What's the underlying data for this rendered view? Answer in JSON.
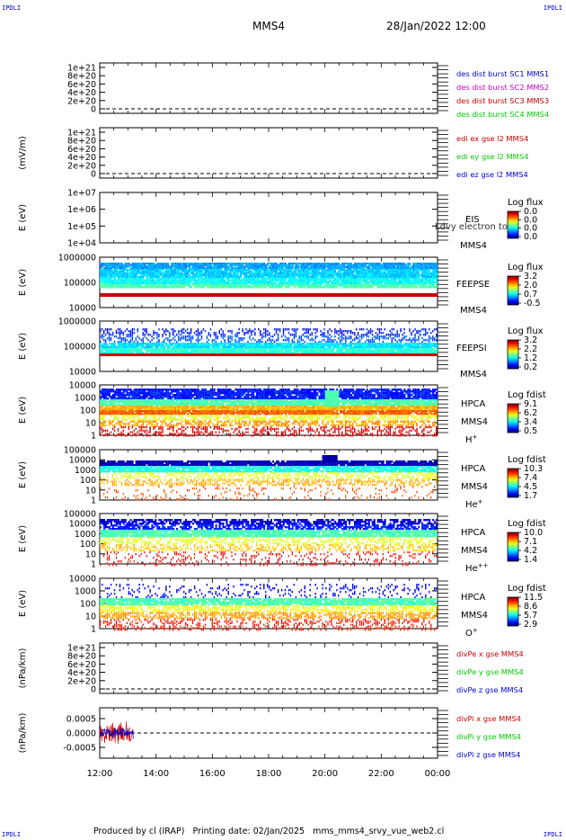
{
  "corners": {
    "tl": "IPDLI",
    "tr": "IPDLI",
    "bl": "IPDLI",
    "br": "IPDLI"
  },
  "header": {
    "spacecraft": "MMS4",
    "datetime": "28/Jan/2022 12:00"
  },
  "footer": {
    "producer": "Produced by cl (IRAP)",
    "printing": "Printing date: 02/Jan/2025",
    "file": "mms_mms4_srvy_vue_web2.cl"
  },
  "chart_data": {
    "type": "line",
    "x_ticks": [
      "12:00",
      "14:00",
      "16:00",
      "18:00",
      "20:00",
      "22:00",
      "00:00"
    ],
    "x_range_hours": [
      12,
      24
    ],
    "panels": [
      {
        "id": "des-dist",
        "kind": "line",
        "ylabel": "",
        "yticks": [
          "1e+21",
          "8e+20",
          "6e+20",
          "4e+20",
          "2e+20",
          "0"
        ],
        "legend": [
          {
            "label": "des dist burst SC1 MMS1",
            "color": "#0000cc"
          },
          {
            "label": "des dist burst SC2 MMS2",
            "color": "#cc00cc"
          },
          {
            "label": "des dist burst SC3 MMS3",
            "color": "#cc0000"
          },
          {
            "label": "des dist burst SC4 MMS4",
            "color": "#00cc00"
          }
        ],
        "series": [],
        "zero_line": true
      },
      {
        "id": "edi",
        "kind": "line",
        "ylabel": "(mV/m)",
        "yticks": [
          "1e+21",
          "8e+20",
          "6e+20",
          "4e+20",
          "2e+20",
          "0"
        ],
        "legend": [
          {
            "label": "edi ex gse l2 MMS4",
            "color": "#cc0000"
          },
          {
            "label": "edi ey gse l2 MMS4",
            "color": "#00cc00"
          },
          {
            "label": "edi ez gse l2 MMS4",
            "color": "#0000cc"
          }
        ],
        "series": [],
        "zero_line": true
      },
      {
        "id": "eis",
        "kind": "spectrogram",
        "ylabel": "E (eV)",
        "yticks": [
          "1e+07",
          "1e+06",
          "1e+05",
          "1e+04"
        ],
        "instrument": "EIS",
        "sublabels": [
          "MMS4"
        ],
        "overlay": "Ldvy electron to",
        "colorbar": {
          "title": "Log flux",
          "ticks": [
            "0.0",
            "0.0",
            "0.0",
            "0.0"
          ]
        },
        "data": "empty"
      },
      {
        "id": "feepse",
        "kind": "spectrogram",
        "ylabel": "E (eV)",
        "yticks": [
          "1000000",
          "100000",
          "10000"
        ],
        "instrument": "FEEPSE",
        "sublabels": [
          "MMS4"
        ],
        "colorbar": {
          "title": "Log flux",
          "ticks": [
            "3.2",
            "2.0",
            "0.7",
            "-0.5"
          ]
        }
      },
      {
        "id": "feepsi",
        "kind": "spectrogram",
        "ylabel": "E (eV)",
        "yticks": [
          "1000000",
          "100000",
          "10000"
        ],
        "instrument": "FEEPSI",
        "sublabels": [
          "MMS4"
        ],
        "colorbar": {
          "title": "Log flux",
          "ticks": [
            "3.2",
            "2.2",
            "1.2",
            "0.2"
          ]
        }
      },
      {
        "id": "hpca-h",
        "kind": "spectrogram",
        "ylabel": "E (eV)",
        "yticks": [
          "10000",
          "1000",
          "100",
          "10",
          "1"
        ],
        "instrument": "HPCA",
        "sublabels": [
          "MMS4"
        ],
        "species": "H",
        "charge": "+",
        "colorbar": {
          "title": "Log fdist",
          "ticks": [
            "9.1",
            "6.2",
            "3.4",
            "0.5"
          ]
        }
      },
      {
        "id": "hpca-he1",
        "kind": "spectrogram",
        "ylabel": "E (eV)",
        "yticks": [
          "100000",
          "10000",
          "1000",
          "100",
          "10",
          "1"
        ],
        "instrument": "HPCA",
        "sublabels": [
          "MMS4"
        ],
        "species": "He",
        "charge": "+",
        "colorbar": {
          "title": "Log fdist",
          "ticks": [
            "10.3",
            "7.4",
            "4.5",
            "1.7"
          ]
        }
      },
      {
        "id": "hpca-he2",
        "kind": "spectrogram",
        "ylabel": "E (eV)",
        "yticks": [
          "100000",
          "10000",
          "1000",
          "100",
          "10",
          "1"
        ],
        "instrument": "HPCA",
        "sublabels": [
          "MMS4"
        ],
        "species": "He",
        "charge": "++",
        "colorbar": {
          "title": "Log fdist",
          "ticks": [
            "10.0",
            "7.1",
            "4.2",
            "1.4"
          ]
        }
      },
      {
        "id": "hpca-o",
        "kind": "spectrogram",
        "ylabel": "E (eV)",
        "yticks": [
          "10000",
          "1000",
          "100",
          "10",
          "1"
        ],
        "instrument": "HPCA",
        "sublabels": [
          "MMS4"
        ],
        "species": "O",
        "charge": "+",
        "colorbar": {
          "title": "Log fdist",
          "ticks": [
            "11.5",
            "8.6",
            "5.7",
            "2.9"
          ]
        }
      },
      {
        "id": "divpe",
        "kind": "line",
        "ylabel": "(nPa/km)",
        "yticks": [
          "1e+21",
          "8e+20",
          "6e+20",
          "4e+20",
          "2e+20",
          "0"
        ],
        "legend": [
          {
            "label": "divPe x gse MMS4",
            "color": "#cc0000"
          },
          {
            "label": "divPe y gse MMS4",
            "color": "#00cc00"
          },
          {
            "label": "divPe z gse MMS4",
            "color": "#0000cc"
          }
        ],
        "series": [],
        "zero_line": true
      },
      {
        "id": "divpi",
        "kind": "line",
        "ylabel": "(nPa/km)",
        "yticks": [
          "0.0005",
          "0.0000",
          "-0.0005"
        ],
        "ylim": [
          -0.00085,
          0.00085
        ],
        "legend": [
          {
            "label": "divPi x gse MMS4",
            "color": "#cc0000"
          },
          {
            "label": "divPi y gse MMS4",
            "color": "#00cc00"
          },
          {
            "label": "divPi z gse MMS4",
            "color": "#0000cc"
          }
        ],
        "series": [
          {
            "name": "divPi x gse MMS4",
            "color": "#cc0000",
            "x_hours": [
              12.0,
              13.2
            ],
            "amplitude": 0.0004
          },
          {
            "name": "divPi z gse MMS4",
            "color": "#0000cc",
            "x_hours": [
              12.0,
              13.2
            ],
            "amplitude": 0.0002
          }
        ],
        "zero_line": true
      }
    ]
  }
}
